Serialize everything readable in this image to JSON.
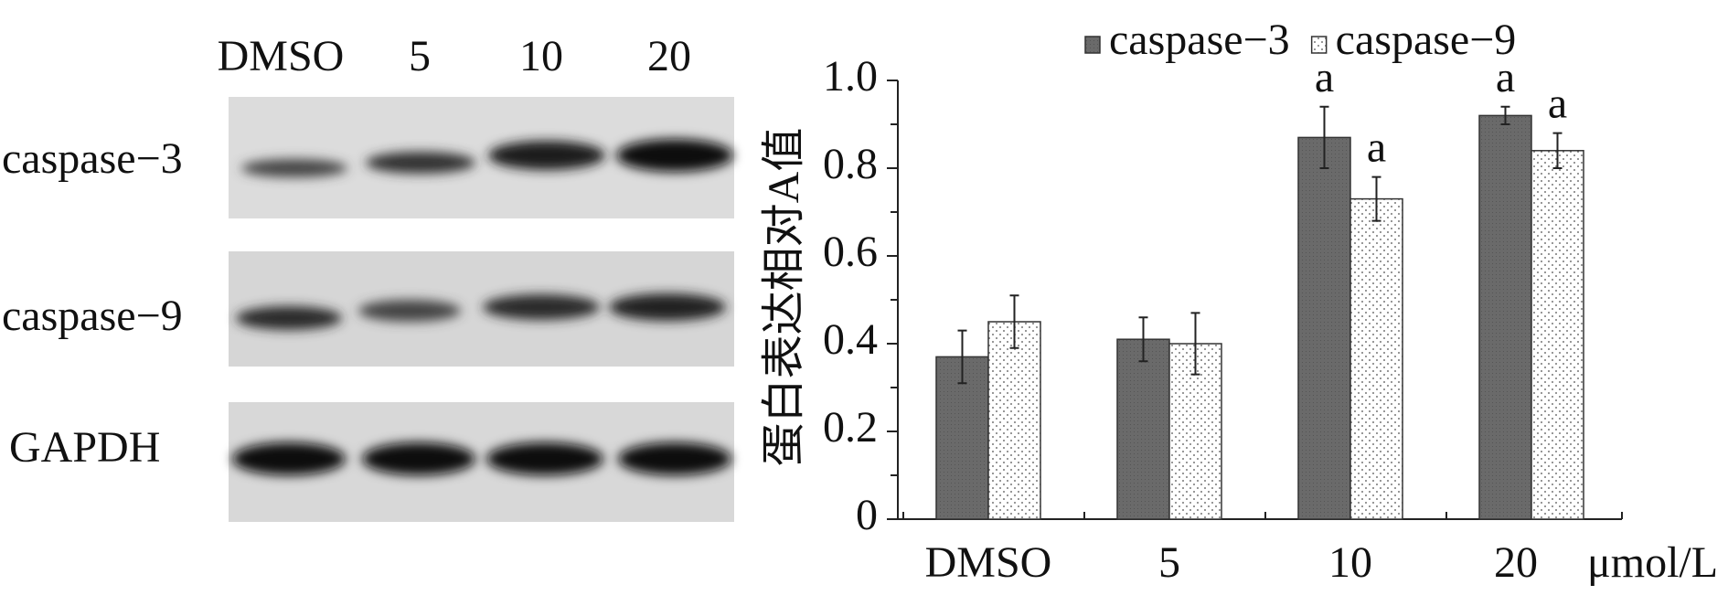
{
  "blot": {
    "lanes": [
      "DMSO",
      "5",
      "10",
      "20"
    ],
    "rows": [
      "caspase−3",
      "caspase−9",
      "GAPDH"
    ]
  },
  "chart_data": {
    "type": "bar",
    "y_label": "蛋白表达相对A值",
    "x_unit": "μmol/L",
    "categories": [
      "DMSO",
      "5",
      "10",
      "20"
    ],
    "series": [
      {
        "name": "caspase−3",
        "color": "#6a6a6a",
        "values": [
          0.37,
          0.41,
          0.87,
          0.92
        ],
        "errors": [
          0.06,
          0.05,
          0.07,
          0.02
        ],
        "annotations": [
          null,
          null,
          "a",
          "a"
        ]
      },
      {
        "name": "caspase−9",
        "color": "#ffffff",
        "values": [
          0.45,
          0.4,
          0.73,
          0.84
        ],
        "errors": [
          0.06,
          0.07,
          0.05,
          0.04
        ],
        "annotations": [
          null,
          null,
          "a",
          "a"
        ]
      }
    ],
    "ylim": [
      0,
      1
    ],
    "yticks": [
      0,
      0.2,
      0.4,
      0.6,
      0.8,
      {
        "value": 1,
        "label": "1.0"
      }
    ],
    "yminorticks": [
      0.1,
      0.3,
      0.5,
      0.7,
      0.9
    ]
  }
}
